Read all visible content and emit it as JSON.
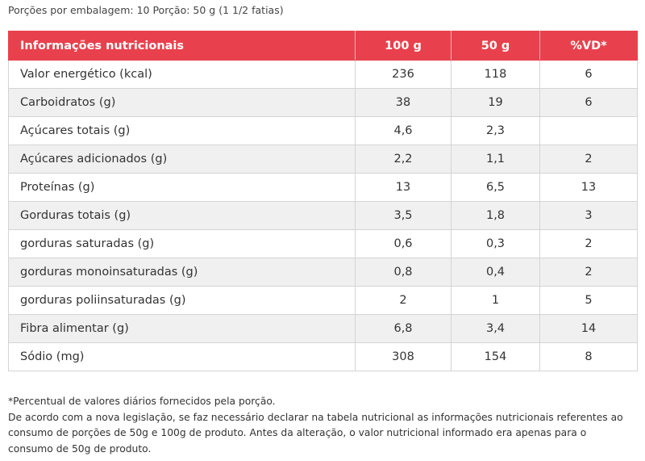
{
  "portions_text": "Porções por embalagem: 10 Porção: 50 g (1 1/2 fatias)",
  "table": {
    "headers": [
      "Informações nutricionais",
      "100 g",
      "50 g",
      "%VD*"
    ],
    "rows": [
      {
        "name": "Valor energético (kcal)",
        "g100": "236",
        "g50": "118",
        "vd": "6"
      },
      {
        "name": "Carboidratos (g)",
        "g100": "38",
        "g50": "19",
        "vd": "6"
      },
      {
        "name": "Açúcares totais (g)",
        "g100": "4,6",
        "g50": "2,3",
        "vd": ""
      },
      {
        "name": "Açúcares adicionados (g)",
        "g100": "2,2",
        "g50": "1,1",
        "vd": "2"
      },
      {
        "name": "Proteínas (g)",
        "g100": "13",
        "g50": "6,5",
        "vd": "13"
      },
      {
        "name": "Gorduras totais (g)",
        "g100": "3,5",
        "g50": "1,8",
        "vd": "3"
      },
      {
        "name": "gorduras saturadas (g)",
        "g100": "0,6",
        "g50": "0,3",
        "vd": "2"
      },
      {
        "name": "gorduras monoinsaturadas (g)",
        "g100": "0,8",
        "g50": "0,4",
        "vd": "2"
      },
      {
        "name": "gorduras poliinsaturadas (g)",
        "g100": "2",
        "g50": "1",
        "vd": "5"
      },
      {
        "name": "Fibra alimentar (g)",
        "g100": "6,8",
        "g50": "3,4",
        "vd": "14"
      },
      {
        "name": "Sódio (mg)",
        "g100": "308",
        "g50": "154",
        "vd": "8"
      }
    ]
  },
  "footnote": {
    "line1": "*Percentual de valores diários fornecidos pela porção.",
    "line2": "De acordo com a nova legislação, se faz necessário declarar na tabela nutricional as informações nutricionais referentes ao consumo de porções de 50g e 100g de produto. Antes da alteração, o valor nutricional informado era apenas para o consumo de 50g de produto."
  },
  "colors": {
    "header_bg": "#e8414d",
    "row_alt_bg": "#f0f0f0"
  }
}
